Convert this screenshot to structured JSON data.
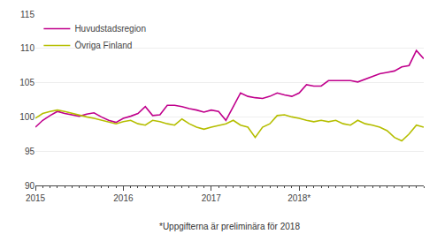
{
  "chart_data": {
    "type": "line",
    "categories": [
      "2015",
      null,
      null,
      null,
      null,
      null,
      null,
      null,
      null,
      null,
      null,
      null,
      "2016",
      null,
      null,
      null,
      null,
      null,
      null,
      null,
      null,
      null,
      null,
      null,
      "2017",
      null,
      null,
      null,
      null,
      null,
      null,
      null,
      null,
      null,
      null,
      null,
      "2018*",
      null,
      null,
      null,
      null,
      null,
      null,
      null,
      null,
      null,
      null,
      null,
      null,
      null,
      null,
      null,
      null,
      null
    ],
    "series": [
      {
        "name": "Huvudstadsregion",
        "color": "#c0008c",
        "values": [
          98.5,
          99.5,
          100.2,
          100.8,
          100.5,
          100.3,
          100.1,
          100.4,
          100.6,
          100.0,
          99.5,
          99.2,
          99.8,
          100.1,
          100.5,
          101.5,
          100.2,
          100.3,
          101.7,
          101.7,
          101.5,
          101.2,
          101.0,
          100.7,
          101.0,
          100.8,
          99.5,
          101.5,
          103.5,
          103.0,
          102.8,
          102.7,
          103.0,
          103.5,
          103.2,
          103.0,
          103.5,
          104.7,
          104.5,
          104.5,
          105.3,
          105.3,
          105.3,
          105.3,
          105.1,
          105.5,
          106.0,
          106.3,
          106.5,
          106.7,
          107.3,
          107.5,
          109.7,
          108.5
        ]
      },
      {
        "name": "Övriga Finland",
        "color": "#b5be00",
        "values": [
          99.8,
          100.5,
          100.8,
          101.0,
          100.8,
          100.5,
          100.2,
          100.0,
          99.8,
          99.5,
          99.2,
          99.0,
          99.3,
          99.5,
          99.0,
          98.8,
          99.5,
          99.3,
          99.0,
          98.8,
          99.7,
          99.0,
          98.5,
          98.2,
          98.5,
          98.8,
          99.0,
          99.5,
          98.8,
          98.5,
          97.0,
          98.5,
          99.0,
          100.2,
          100.3,
          100.0,
          99.8,
          99.5,
          99.3,
          99.5,
          99.3,
          99.5,
          99.0,
          98.8,
          99.5,
          99.0,
          98.8,
          98.5,
          98.0,
          97.0,
          96.5,
          97.5,
          98.8,
          98.5
        ]
      }
    ],
    "ylim": [
      90,
      115
    ],
    "yticks": [
      90,
      95,
      100,
      105,
      110,
      115
    ],
    "grid": true,
    "legend": "upper left",
    "annotations": [
      "*Uppgifterna är preliminära för 2018"
    ]
  }
}
